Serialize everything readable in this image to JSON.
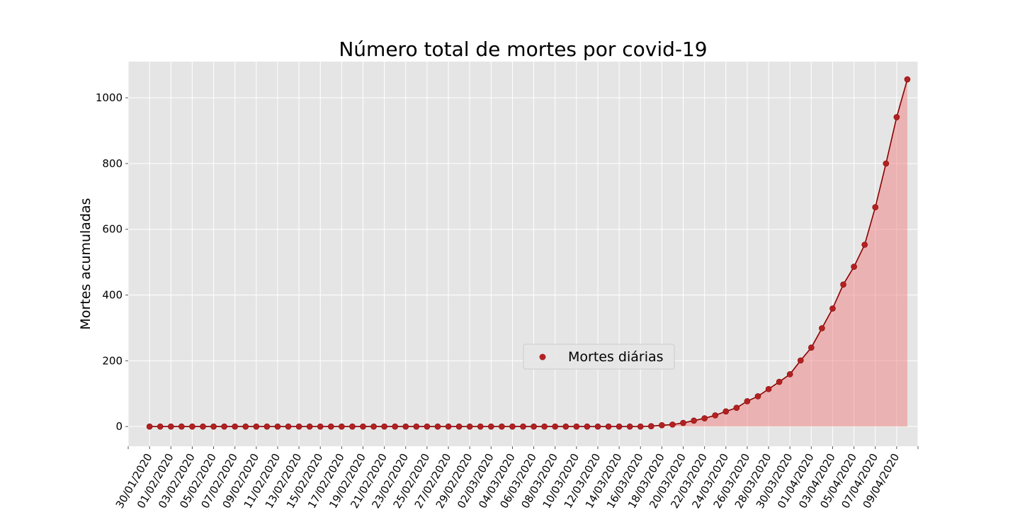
{
  "chart_data": {
    "type": "line",
    "title": "Número total de mortes por covid-19",
    "xlabel": "",
    "ylabel": "Mortes acumuladas",
    "ylim": [
      -60,
      1110
    ],
    "yticks": [
      0,
      200,
      400,
      600,
      800,
      1000
    ],
    "xlim": [
      "28/01/2020",
      "11/04/2020"
    ],
    "grid": true,
    "legend_placement": "center-right",
    "area_fill": true,
    "colors": {
      "background": "#e5e5e5",
      "grid": "#ffffff",
      "line": "#8b0000",
      "marker": "#b22222",
      "fill": "#f08080"
    },
    "x_tick_labels": [
      "30/01/2020",
      "01/02/2020",
      "03/02/2020",
      "05/02/2020",
      "07/02/2020",
      "09/02/2020",
      "11/02/2020",
      "13/02/2020",
      "15/02/2020",
      "17/02/2020",
      "19/02/2020",
      "21/02/2020",
      "23/02/2020",
      "25/02/2020",
      "27/02/2020",
      "29/02/2020",
      "02/03/2020",
      "04/03/2020",
      "06/03/2020",
      "08/03/2020",
      "10/03/2020",
      "12/03/2020",
      "14/03/2020",
      "16/03/2020",
      "18/03/2020",
      "20/03/2020",
      "22/03/2020",
      "24/03/2020",
      "26/03/2020",
      "28/03/2020",
      "30/03/2020",
      "01/04/2020",
      "03/04/2020",
      "05/04/2020",
      "07/04/2020",
      "09/04/2020"
    ],
    "x": [
      "30/01/2020",
      "31/01/2020",
      "01/02/2020",
      "02/02/2020",
      "03/02/2020",
      "04/02/2020",
      "05/02/2020",
      "06/02/2020",
      "07/02/2020",
      "08/02/2020",
      "09/02/2020",
      "10/02/2020",
      "11/02/2020",
      "12/02/2020",
      "13/02/2020",
      "14/02/2020",
      "15/02/2020",
      "16/02/2020",
      "17/02/2020",
      "18/02/2020",
      "19/02/2020",
      "20/02/2020",
      "21/02/2020",
      "22/02/2020",
      "23/02/2020",
      "24/02/2020",
      "25/02/2020",
      "26/02/2020",
      "27/02/2020",
      "28/02/2020",
      "29/02/2020",
      "01/03/2020",
      "02/03/2020",
      "03/03/2020",
      "04/03/2020",
      "05/03/2020",
      "06/03/2020",
      "07/03/2020",
      "08/03/2020",
      "09/03/2020",
      "10/03/2020",
      "11/03/2020",
      "12/03/2020",
      "13/03/2020",
      "14/03/2020",
      "15/03/2020",
      "16/03/2020",
      "17/03/2020",
      "18/03/2020",
      "19/03/2020",
      "20/03/2020",
      "21/03/2020",
      "22/03/2020",
      "23/03/2020",
      "24/03/2020",
      "25/03/2020",
      "26/03/2020",
      "27/03/2020",
      "28/03/2020",
      "29/03/2020",
      "30/03/2020",
      "31/03/2020",
      "01/04/2020",
      "02/04/2020",
      "03/04/2020",
      "04/04/2020",
      "05/04/2020",
      "06/04/2020",
      "07/04/2020",
      "08/04/2020",
      "09/04/2020",
      "10/04/2020"
    ],
    "series": [
      {
        "name": "Mortes diárias",
        "values": [
          0,
          0,
          0,
          0,
          0,
          0,
          0,
          0,
          0,
          0,
          0,
          0,
          0,
          0,
          0,
          0,
          0,
          0,
          0,
          0,
          0,
          0,
          0,
          0,
          0,
          0,
          0,
          0,
          0,
          0,
          0,
          0,
          0,
          0,
          0,
          0,
          0,
          0,
          0,
          0,
          0,
          0,
          0,
          0,
          0,
          0,
          0,
          1,
          4,
          6,
          11,
          18,
          25,
          34,
          46,
          57,
          77,
          92,
          114,
          136,
          159,
          201,
          240,
          299,
          359,
          432,
          486,
          553,
          667,
          800,
          941,
          1056
        ]
      }
    ]
  }
}
